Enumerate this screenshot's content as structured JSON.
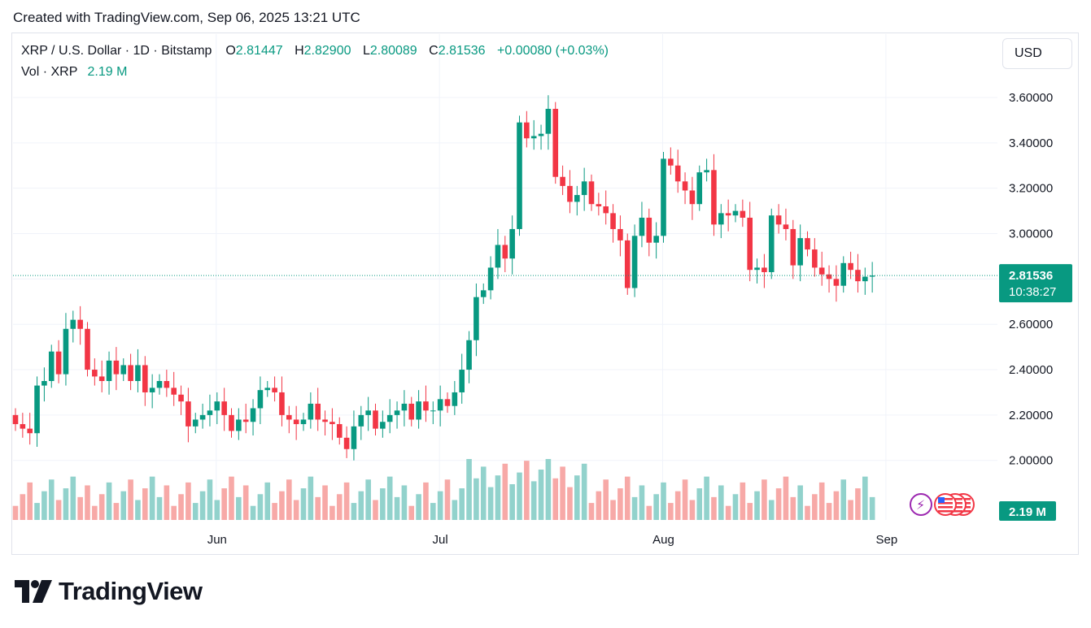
{
  "header": {
    "created": "Created with TradingView.com, Sep 06, 2025 13:21 UTC"
  },
  "legend": {
    "symbol": "XRP / U.S. Dollar · 1D · Bitstamp",
    "o_label": "O",
    "o_value": "2.81447",
    "h_label": "H",
    "h_value": "2.82900",
    "l_label": "L",
    "l_value": "2.80089",
    "c_label": "C",
    "c_value": "2.81536",
    "change": "+0.00080 (+0.03%)",
    "vol_label": "Vol · XRP",
    "vol_value": "2.19 M"
  },
  "currency_button": "USD",
  "logo_text": "TradingView",
  "colors": {
    "up": "#089981",
    "down": "#f23645",
    "vol_up": "#92d2cc",
    "vol_down": "#f7a9a7"
  },
  "chart_data": {
    "type": "candlestick",
    "y_axis_labels": [
      "3.60000",
      "3.40000",
      "3.20000",
      "3.00000",
      "2.80000",
      "2.60000",
      "2.40000",
      "2.20000",
      "2.00000"
    ],
    "ylim": [
      1.8,
      3.7
    ],
    "x_axis_labels": [
      "Jun",
      "Jul",
      "Aug",
      "Sep"
    ],
    "last_price_label": "2.81536",
    "countdown_label": "10:38:27",
    "volume_label": "2.19 M",
    "candles": [
      [
        2.2,
        2.16
      ],
      [
        2.16,
        2.14
      ],
      [
        2.14,
        2.12
      ],
      [
        2.12,
        2.33
      ],
      [
        2.33,
        2.35
      ],
      [
        2.35,
        2.48
      ],
      [
        2.48,
        2.38
      ],
      [
        2.38,
        2.58
      ],
      [
        2.58,
        2.62
      ],
      [
        2.62,
        2.58
      ],
      [
        2.58,
        2.4
      ],
      [
        2.4,
        2.37
      ],
      [
        2.37,
        2.35
      ],
      [
        2.35,
        2.44
      ],
      [
        2.44,
        2.38
      ],
      [
        2.38,
        2.42
      ],
      [
        2.42,
        2.35
      ],
      [
        2.35,
        2.42
      ],
      [
        2.42,
        2.3
      ],
      [
        2.3,
        2.32
      ],
      [
        2.32,
        2.35
      ],
      [
        2.35,
        2.32
      ],
      [
        2.32,
        2.29
      ],
      [
        2.29,
        2.26
      ],
      [
        2.26,
        2.15
      ],
      [
        2.15,
        2.18
      ],
      [
        2.18,
        2.2
      ],
      [
        2.2,
        2.22
      ],
      [
        2.22,
        2.26
      ],
      [
        2.26,
        2.2
      ],
      [
        2.2,
        2.13
      ],
      [
        2.13,
        2.18
      ],
      [
        2.18,
        2.17
      ],
      [
        2.17,
        2.23
      ],
      [
        2.23,
        2.31
      ],
      [
        2.31,
        2.32
      ],
      [
        2.32,
        2.3
      ],
      [
        2.3,
        2.2
      ],
      [
        2.2,
        2.18
      ],
      [
        2.18,
        2.16
      ],
      [
        2.16,
        2.18
      ],
      [
        2.18,
        2.25
      ],
      [
        2.25,
        2.18
      ],
      [
        2.18,
        2.17
      ],
      [
        2.17,
        2.16
      ],
      [
        2.16,
        2.1
      ],
      [
        2.1,
        2.05
      ],
      [
        2.05,
        2.15
      ],
      [
        2.15,
        2.2
      ],
      [
        2.2,
        2.22
      ],
      [
        2.22,
        2.14
      ],
      [
        2.14,
        2.17
      ],
      [
        2.17,
        2.2
      ],
      [
        2.2,
        2.22
      ],
      [
        2.22,
        2.25
      ],
      [
        2.25,
        2.18
      ],
      [
        2.18,
        2.26
      ],
      [
        2.26,
        2.22
      ],
      [
        2.22,
        2.22
      ],
      [
        2.22,
        2.27
      ],
      [
        2.27,
        2.24
      ],
      [
        2.24,
        2.3
      ],
      [
        2.3,
        2.4
      ],
      [
        2.4,
        2.53
      ],
      [
        2.53,
        2.72
      ],
      [
        2.72,
        2.75
      ],
      [
        2.75,
        2.85
      ],
      [
        2.85,
        2.95
      ],
      [
        2.95,
        2.89
      ],
      [
        2.89,
        3.02
      ],
      [
        3.02,
        3.49
      ],
      [
        3.49,
        3.42
      ],
      [
        3.42,
        3.43
      ],
      [
        3.43,
        3.44
      ],
      [
        3.44,
        3.55
      ],
      [
        3.55,
        3.25
      ],
      [
        3.25,
        3.21
      ],
      [
        3.21,
        3.14
      ],
      [
        3.14,
        3.17
      ],
      [
        3.17,
        3.23
      ],
      [
        3.23,
        3.13
      ],
      [
        3.13,
        3.12
      ],
      [
        3.12,
        3.09
      ],
      [
        3.09,
        3.02
      ],
      [
        3.02,
        2.97
      ],
      [
        2.97,
        2.76
      ],
      [
        2.76,
        2.99
      ],
      [
        2.99,
        3.07
      ],
      [
        3.07,
        2.96
      ],
      [
        2.96,
        2.99
      ],
      [
        2.99,
        3.33
      ],
      [
        3.33,
        3.3
      ],
      [
        3.3,
        3.23
      ],
      [
        3.23,
        3.19
      ],
      [
        3.19,
        3.13
      ],
      [
        3.13,
        3.27
      ],
      [
        3.27,
        3.28
      ],
      [
        3.28,
        3.04
      ],
      [
        3.04,
        3.09
      ],
      [
        3.09,
        3.08
      ],
      [
        3.08,
        3.1
      ],
      [
        3.1,
        3.07
      ],
      [
        3.07,
        2.84
      ],
      [
        2.84,
        2.85
      ],
      [
        2.85,
        2.83
      ],
      [
        2.83,
        3.08
      ],
      [
        3.08,
        3.04
      ],
      [
        3.04,
        3.02
      ],
      [
        3.02,
        2.86
      ],
      [
        2.86,
        2.98
      ],
      [
        2.98,
        2.93
      ],
      [
        2.93,
        2.85
      ],
      [
        2.85,
        2.82
      ],
      [
        2.82,
        2.8
      ],
      [
        2.8,
        2.77
      ],
      [
        2.77,
        2.87
      ],
      [
        2.87,
        2.84
      ],
      [
        2.84,
        2.79
      ],
      [
        2.79,
        2.81
      ],
      [
        2.81,
        2.815
      ]
    ],
    "volume_scale_max": 5.2
  }
}
